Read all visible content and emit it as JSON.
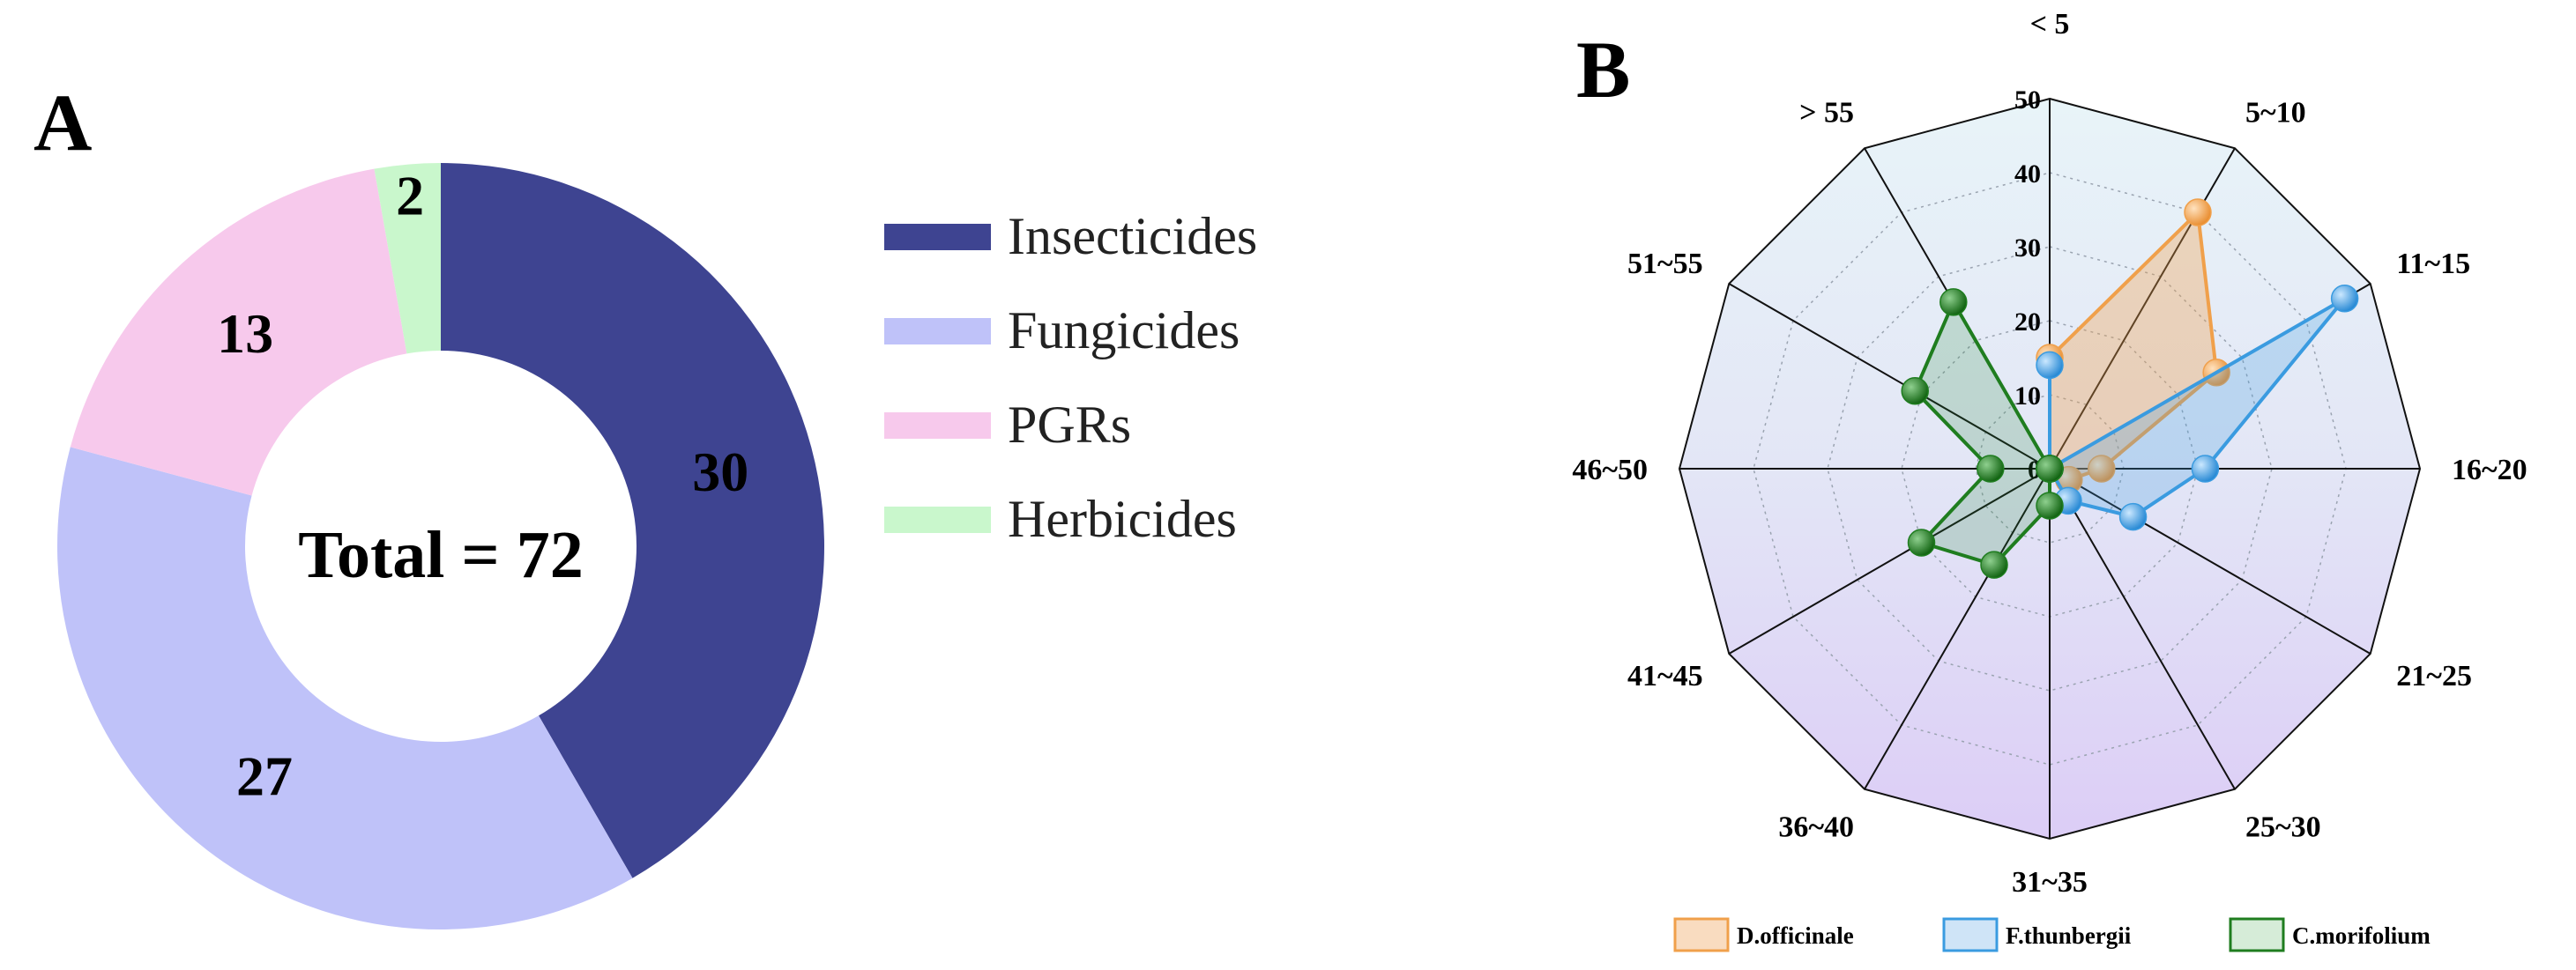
{
  "chart_data": [
    {
      "type": "pie",
      "panel": "A",
      "center_label": "Total = 72",
      "categories": [
        "Insecticides",
        "Fungicides",
        "PGRs",
        "Herbicides"
      ],
      "values": [
        30,
        27,
        13,
        2
      ],
      "colors": [
        "#3e4491",
        "#bfc2f9",
        "#f7c9ec",
        "#c9f7cc"
      ],
      "legend_position": "right"
    },
    {
      "type": "radar",
      "panel": "B",
      "categories": [
        "< 5",
        "5~10",
        "11~15",
        "16~20",
        "21~25",
        "25~30",
        "31~35",
        "36~40",
        "41~45",
        "46~50",
        "51~55",
        "> 55"
      ],
      "rlim": [
        0,
        50
      ],
      "ticks": [
        0,
        10,
        20,
        30,
        40,
        50
      ],
      "legend_position": "bottom",
      "series": [
        {
          "name": "D.officinale",
          "color": "#f0a04b",
          "values": [
            15,
            40,
            26,
            7,
            3,
            0,
            0,
            0,
            0,
            0,
            0,
            0
          ]
        },
        {
          "name": "F.thunbergii",
          "color": "#3a9be0",
          "values": [
            14,
            0,
            46,
            21,
            13,
            5,
            0,
            0,
            0,
            0,
            0,
            0
          ]
        },
        {
          "name": "C.morifolium",
          "color": "#1f7d1f",
          "values": [
            0,
            0,
            0,
            0,
            0,
            0,
            5,
            15,
            20,
            8,
            21,
            26
          ]
        }
      ]
    }
  ]
}
